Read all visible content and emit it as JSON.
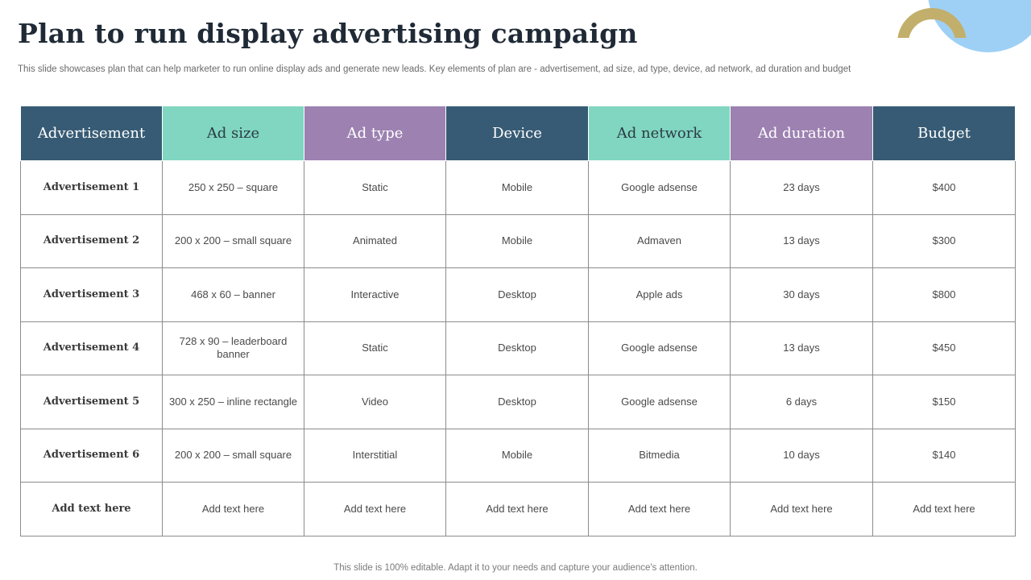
{
  "title": "Plan to run display advertising campaign",
  "subtitle": "This slide showcases plan that can help marketer to run online display ads and generate new leads. Key elements of plan are - advertisement, ad size, ad type,  device, ad network, ad duration and budget",
  "colors": {
    "header_blue": "#375b74",
    "header_teal": "#80d6c0",
    "header_purple": "#9c81b1",
    "deco_light_blue": "#9ed0f5",
    "deco_gold": "#c2af6b"
  },
  "table": {
    "headers": [
      "Advertisement",
      "Ad size",
      "Ad type",
      "Device",
      "Ad network",
      "Ad duration",
      "Budget"
    ],
    "rows": [
      [
        "Advertisement 1",
        "250 x 250 – square",
        "Static",
        "Mobile",
        "Google adsense",
        "23 days",
        "$400"
      ],
      [
        "Advertisement 2",
        "200 x 200 – small square",
        "Animated",
        "Mobile",
        "Admaven",
        "13 days",
        "$300"
      ],
      [
        "Advertisement 3",
        "468 x 60 – banner",
        "Interactive",
        "Desktop",
        "Apple ads",
        "30 days",
        "$800"
      ],
      [
        "Advertisement 4",
        "728 x 90 – leaderboard  banner",
        "Static",
        "Desktop",
        "Google adsense",
        "13 days",
        "$450"
      ],
      [
        "Advertisement 5",
        "300 x 250 – inline rectangle",
        "Video",
        "Desktop",
        "Google adsense",
        "6 days",
        "$150"
      ],
      [
        "Advertisement 6",
        "200 x 200 – small square",
        "Interstitial",
        "Mobile",
        "Bitmedia",
        "10 days",
        "$140"
      ],
      [
        "Add text here",
        "Add text here",
        "Add text here",
        "Add text here",
        "Add text here",
        "Add text here",
        "Add text here"
      ]
    ]
  },
  "footer": "This slide is 100% editable. Adapt it to your needs and capture your audience's attention."
}
